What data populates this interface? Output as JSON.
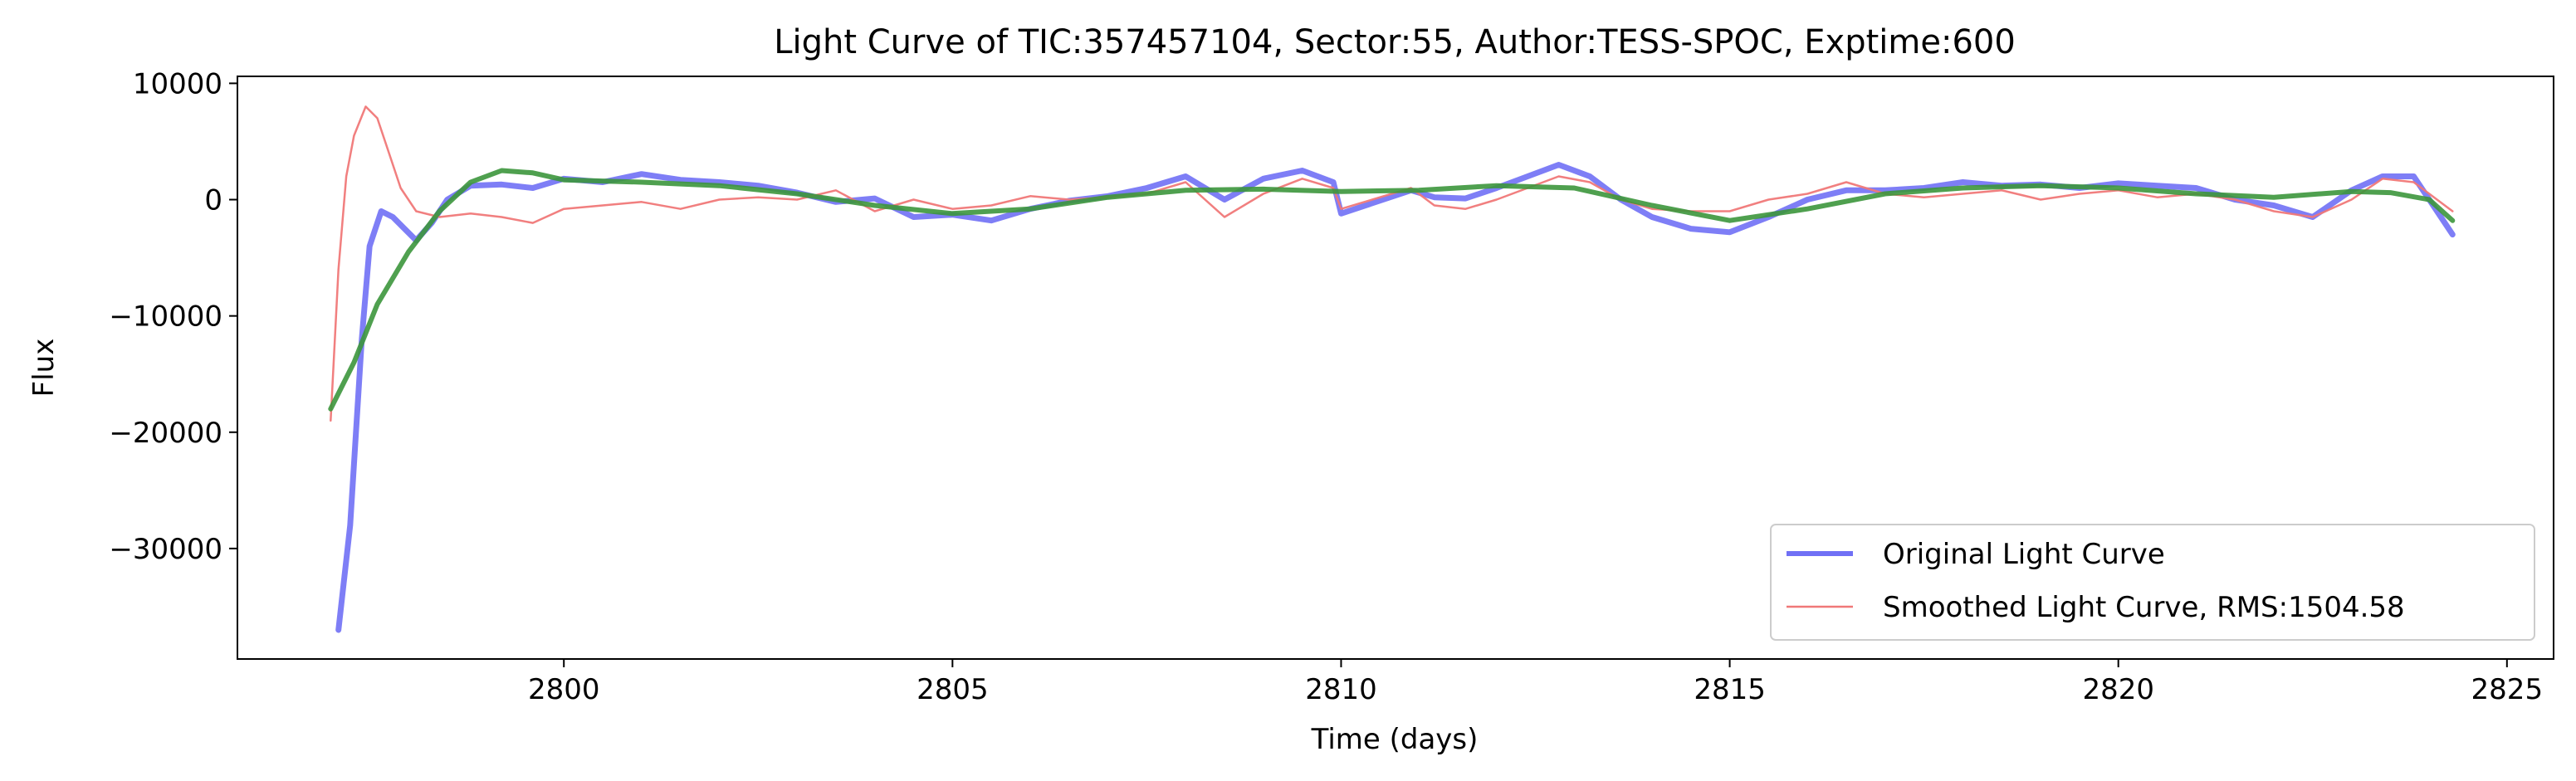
{
  "chart_data": {
    "type": "line",
    "title": "Light Curve of TIC:357457104, Sector:55, Author:TESS-SPOC, Exptime:600",
    "xlabel": "Time (days)",
    "ylabel": "Flux",
    "xlim": [
      2795.8,
      2825.6
    ],
    "ylim": [
      -39500,
      10600
    ],
    "xticks": [
      2800,
      2805,
      2810,
      2815,
      2820,
      2825
    ],
    "yticks": [
      10000,
      0,
      -10000,
      -20000,
      -30000
    ],
    "xtick_labels": [
      "2800",
      "2805",
      "2810",
      "2815",
      "2820",
      "2825"
    ],
    "ytick_labels": [
      "10000",
      "0",
      "−10000",
      "−20000",
      "−30000"
    ],
    "legend_position": "lower right",
    "series": [
      {
        "name": "Original Light Curve",
        "color": "#7070f5",
        "style": "thick",
        "x": [
          2797.1,
          2797.25,
          2797.4,
          2797.5,
          2797.65,
          2797.8,
          2797.95,
          2798.1,
          2798.3,
          2798.5,
          2798.8,
          2799.2,
          2799.6,
          2800.0,
          2800.5,
          2801.0,
          2801.5,
          2802.0,
          2802.5,
          2803.0,
          2803.5,
          2804.0,
          2804.5,
          2805.0,
          2805.5,
          2806.0,
          2806.5,
          2807.0,
          2807.5,
          2808.0,
          2808.5,
          2809.0,
          2809.5,
          2809.9,
          2810.0,
          2810.9,
          2811.2,
          2811.6,
          2812.0,
          2812.4,
          2812.8,
          2813.2,
          2813.6,
          2814.0,
          2814.5,
          2815.0,
          2815.5,
          2816.0,
          2816.5,
          2817.0,
          2817.5,
          2818.0,
          2818.5,
          2819.0,
          2819.5,
          2820.0,
          2820.5,
          2821.0,
          2821.5,
          2822.0,
          2822.5,
          2823.0,
          2823.4,
          2823.8,
          2824.1,
          2824.3
        ],
        "y": [
          -37000,
          -28000,
          -12000,
          -4000,
          -1000,
          -1500,
          -2500,
          -3500,
          -2000,
          0,
          1200,
          1300,
          1000,
          1800,
          1500,
          2200,
          1700,
          1500,
          1200,
          600,
          -200,
          100,
          -1500,
          -1300,
          -1800,
          -800,
          -100,
          300,
          1000,
          2000,
          0,
          1800,
          2500,
          1500,
          -1200,
          800,
          200,
          100,
          1000,
          2000,
          3000,
          2000,
          0,
          -1500,
          -2500,
          -2800,
          -1500,
          0,
          800,
          800,
          1000,
          1500,
          1200,
          1300,
          1000,
          1400,
          1200,
          1000,
          0,
          -500,
          -1500,
          800,
          2000,
          2000,
          -1000,
          -3000
        ]
      },
      {
        "name": "Smoothed Light Curve, RMS:1504.58",
        "color": "#f07878",
        "style": "thin",
        "x": [
          2797.0,
          2797.1,
          2797.2,
          2797.3,
          2797.45,
          2797.6,
          2797.75,
          2797.9,
          2798.1,
          2798.4,
          2798.8,
          2799.2,
          2799.6,
          2800.0,
          2800.5,
          2801.0,
          2801.5,
          2802.0,
          2802.5,
          2803.0,
          2803.5,
          2804.0,
          2804.5,
          2805.0,
          2805.5,
          2806.0,
          2806.5,
          2807.0,
          2807.5,
          2808.0,
          2808.5,
          2809.0,
          2809.5,
          2809.9,
          2810.0,
          2810.9,
          2811.2,
          2811.6,
          2812.0,
          2812.4,
          2812.8,
          2813.2,
          2813.6,
          2814.0,
          2814.5,
          2815.0,
          2815.5,
          2816.0,
          2816.5,
          2817.0,
          2817.5,
          2818.0,
          2818.5,
          2819.0,
          2819.5,
          2820.0,
          2820.5,
          2821.0,
          2821.5,
          2822.0,
          2822.5,
          2823.0,
          2823.4,
          2823.8,
          2824.1,
          2824.3
        ],
        "y": [
          -19000,
          -6000,
          2000,
          5500,
          8000,
          7000,
          4000,
          1000,
          -1000,
          -1500,
          -1200,
          -1500,
          -2000,
          -800,
          -500,
          -200,
          -800,
          0,
          200,
          0,
          800,
          -1000,
          0,
          -800,
          -500,
          300,
          0,
          200,
          500,
          1500,
          -1500,
          500,
          1800,
          1000,
          -800,
          1000,
          -500,
          -800,
          0,
          1000,
          2000,
          1500,
          0,
          -800,
          -1000,
          -1000,
          0,
          500,
          1500,
          500,
          200,
          500,
          800,
          0,
          500,
          800,
          200,
          500,
          0,
          -1000,
          -1500,
          0,
          1800,
          1500,
          0,
          -1000
        ]
      },
      {
        "name": "",
        "color": "#3c963c",
        "style": "trend",
        "x": [
          2797.0,
          2797.3,
          2797.6,
          2798.0,
          2798.4,
          2798.8,
          2799.2,
          2799.6,
          2800.0,
          2801.0,
          2802.0,
          2803.0,
          2804.0,
          2805.0,
          2806.0,
          2807.0,
          2808.0,
          2809.0,
          2810.0,
          2811.0,
          2812.0,
          2813.0,
          2814.0,
          2815.0,
          2816.0,
          2817.0,
          2818.0,
          2819.0,
          2820.0,
          2821.0,
          2822.0,
          2823.0,
          2823.5,
          2824.0,
          2824.3
        ],
        "y": [
          -18000,
          -14000,
          -9000,
          -4500,
          -1000,
          1500,
          2500,
          2300,
          1700,
          1500,
          1200,
          500,
          -500,
          -1200,
          -800,
          200,
          800,
          900,
          700,
          800,
          1200,
          1000,
          -500,
          -1800,
          -800,
          500,
          1000,
          1200,
          1000,
          500,
          200,
          700,
          600,
          0,
          -1800
        ]
      }
    ]
  }
}
